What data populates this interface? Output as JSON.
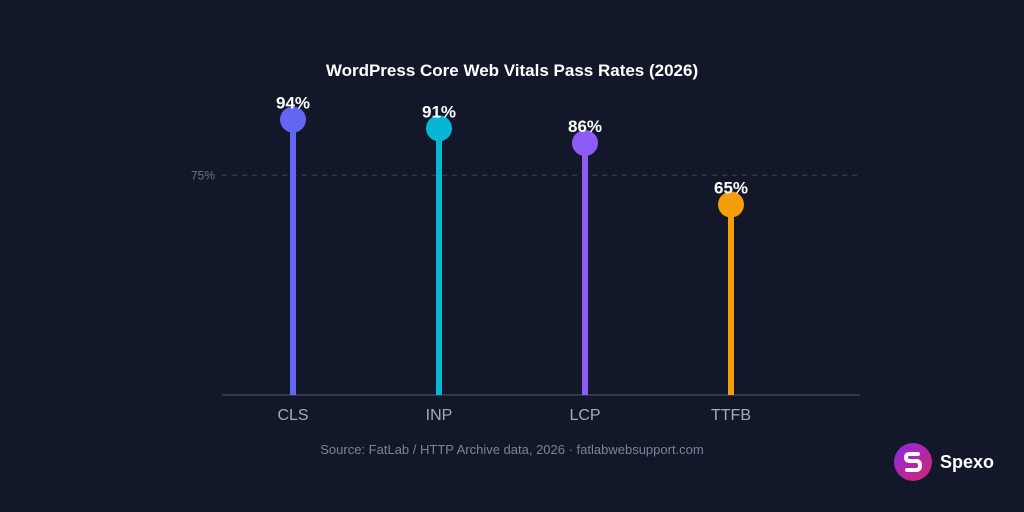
{
  "chart_data": {
    "type": "lollipop",
    "title": "WordPress Core Web Vitals Pass Rates (2026)",
    "categories": [
      "CLS",
      "INP",
      "LCP",
      "TTFB"
    ],
    "values": [
      94,
      91,
      86,
      65
    ],
    "value_labels": [
      "94%",
      "91%",
      "86%",
      "65%"
    ],
    "colors": [
      "#6366f1",
      "#06b6d4",
      "#8b5cf6",
      "#f59e0b"
    ],
    "ylim": [
      0,
      100
    ],
    "reference_line": {
      "value": 75,
      "label": "75%",
      "style": "dashed"
    },
    "grid": false,
    "xlabel": "",
    "ylabel": ""
  },
  "footer": {
    "source": "Source: FatLab / HTTP Archive data, 2026 · fatlabwebsupport.com"
  },
  "brand": {
    "name": "Spexo",
    "icon": "spexo-logo-icon"
  }
}
